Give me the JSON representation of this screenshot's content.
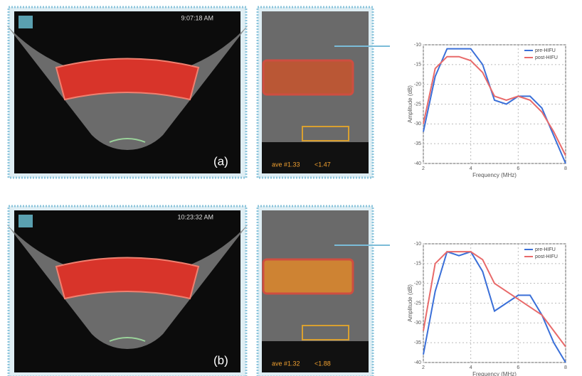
{
  "panels": [
    {
      "label": "(a)",
      "timestamp": "9:07:18 AM",
      "readout": [
        "ave #1.33",
        "<1.47"
      ]
    },
    {
      "label": "(b)",
      "timestamp": "10:23:32 AM",
      "readout": [
        "ave #1.32",
        "<1.88"
      ]
    }
  ],
  "chart_data": [
    {
      "type": "line",
      "x_label": "Frequency (MHz)",
      "y_label": "Amplitude (dB)",
      "x": [
        2,
        2.5,
        3,
        3.5,
        4,
        4.5,
        5,
        5.5,
        6,
        6.5,
        7,
        7.5,
        8
      ],
      "xlim": [
        2,
        8
      ],
      "xticks": [
        2,
        4,
        6,
        8
      ],
      "ylim": [
        -40,
        -10
      ],
      "yticks": [
        -40,
        -35,
        -30,
        -25,
        -20,
        -15,
        -10
      ],
      "grid": true,
      "series": [
        {
          "name": "pre-HIFU",
          "color": "#3a6fd8",
          "values": [
            -32,
            -18,
            -11,
            -11,
            -11,
            -15,
            -24,
            -25,
            -23,
            -23,
            -26,
            -33,
            -40
          ]
        },
        {
          "name": "post-HIFU",
          "color": "#e86a6a",
          "values": [
            -30,
            -16,
            -13,
            -13,
            -14,
            -17,
            -23,
            -24,
            -23,
            -24,
            -27,
            -32,
            -38
          ]
        }
      ]
    },
    {
      "type": "line",
      "x_label": "Frequency (MHz)",
      "y_label": "Amplitude (dB)",
      "x": [
        2,
        2.5,
        3,
        3.5,
        4,
        4.5,
        5,
        5.5,
        6,
        6.5,
        7,
        7.5,
        8
      ],
      "xlim": [
        2,
        8
      ],
      "xticks": [
        2,
        4,
        6,
        8
      ],
      "ylim": [
        -40,
        -10
      ],
      "yticks": [
        -40,
        -35,
        -30,
        -25,
        -20,
        -15,
        -10
      ],
      "grid": true,
      "series": [
        {
          "name": "pre-HIFU",
          "color": "#3a6fd8",
          "values": [
            -38,
            -22,
            -12,
            -13,
            -12,
            -17,
            -27,
            -25,
            -23,
            -23,
            -28,
            -35,
            -40
          ]
        },
        {
          "name": "post-HIFU",
          "color": "#e86a6a",
          "values": [
            -32,
            -15,
            -12,
            -12,
            -12,
            -14,
            -20,
            -22,
            -24,
            -26,
            -28,
            -32,
            -36
          ]
        }
      ]
    }
  ]
}
